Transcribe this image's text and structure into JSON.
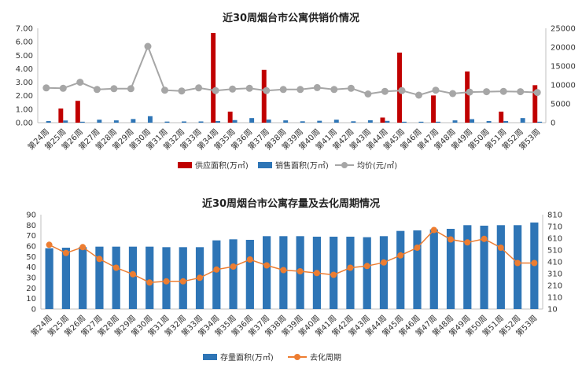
{
  "chart_data": [
    {
      "type": "bar",
      "title": "近30周烟台市公寓供销价情况",
      "categories": [
        "第24周",
        "第25周",
        "第26周",
        "第27周",
        "第28周",
        "第29周",
        "第30周",
        "第31周",
        "第32周",
        "第33周",
        "第34周",
        "第35周",
        "第36周",
        "第37周",
        "第38周",
        "第39周",
        "第40周",
        "第41周",
        "第42周",
        "第43周",
        "第44周",
        "第45周",
        "第46周",
        "第47周",
        "第48周",
        "第49周",
        "第50周",
        "第51周",
        "第52周",
        "第53周"
      ],
      "y_ticks": [
        "0.00",
        "1.00",
        "2.00",
        "3.00",
        "4.00",
        "5.00",
        "6.00",
        "7.00"
      ],
      "y2_ticks": [
        "0",
        "5000",
        "10000",
        "15000",
        "20000",
        "25000"
      ],
      "ylim": [
        0,
        7
      ],
      "y2lim": [
        0,
        25000
      ],
      "legend_position": "bottom",
      "series": [
        {
          "name": "供应面积(万㎡)",
          "kind": "bar",
          "axis": "left",
          "color": "#c00000",
          "values": [
            0,
            1.05,
            1.62,
            0,
            0,
            0,
            0,
            0,
            0,
            0,
            6.65,
            0.82,
            0,
            3.92,
            0,
            0,
            0,
            0,
            0,
            0,
            0.38,
            5.2,
            0,
            2.02,
            0,
            3.8,
            0,
            0.82,
            0,
            2.78
          ]
        },
        {
          "name": "销售面积(万㎡)",
          "kind": "bar",
          "axis": "left",
          "color": "#2e75b6",
          "values": [
            0.12,
            0.16,
            0.07,
            0.22,
            0.17,
            0.27,
            0.48,
            0.08,
            0.09,
            0.09,
            0.12,
            0.19,
            0.34,
            0.23,
            0.17,
            0.1,
            0.14,
            0.22,
            0.1,
            0.18,
            0.13,
            0.07,
            0.07,
            0.07,
            0.17,
            0.26,
            0.12,
            0.12,
            0.34,
            0.07
          ]
        },
        {
          "name": "均价(元/㎡)",
          "kind": "line",
          "axis": "right",
          "color": "#a6a6a6",
          "values": [
            9200,
            9100,
            10700,
            8800,
            9000,
            9000,
            20200,
            8600,
            8400,
            9200,
            8500,
            8900,
            9100,
            8500,
            8800,
            8800,
            9300,
            8800,
            9100,
            7600,
            8300,
            8500,
            7300,
            8600,
            7700,
            8100,
            8200,
            8300,
            8200,
            8000
          ]
        }
      ]
    },
    {
      "type": "bar",
      "title": "近30周烟台市公寓存量及去化周期情况",
      "categories": [
        "第24周",
        "第25周",
        "第26周",
        "第27周",
        "第28周",
        "第29周",
        "第30周",
        "第31周",
        "第32周",
        "第33周",
        "第34周",
        "第35周",
        "第36周",
        "第37周",
        "第38周",
        "第39周",
        "第40周",
        "第41周",
        "第42周",
        "第43周",
        "第44周",
        "第45周",
        "第46周",
        "第47周",
        "第48周",
        "第49周",
        "第50周",
        "第51周",
        "第52周",
        "第53周"
      ],
      "y_ticks": [
        "0",
        "10",
        "20",
        "30",
        "40",
        "50",
        "60",
        "70",
        "80",
        "90"
      ],
      "y2_ticks": [
        "10",
        "110",
        "210",
        "310",
        "410",
        "510",
        "610",
        "710",
        "810"
      ],
      "ylim": [
        0,
        90
      ],
      "y2lim": [
        10,
        810
      ],
      "legend_position": "bottom",
      "series": [
        {
          "name": "存量面积(万㎡)",
          "kind": "bar",
          "axis": "left",
          "color": "#2e75b6",
          "values": [
            58,
            58.5,
            59,
            59.5,
            59.5,
            59.5,
            59.5,
            59,
            59,
            59,
            65.5,
            66.5,
            66,
            69.5,
            69.5,
            69.5,
            69,
            69,
            69,
            68.5,
            69.5,
            74.5,
            75,
            76,
            76.5,
            80,
            79.5,
            80,
            80,
            82.5
          ]
        },
        {
          "name": "去化周期",
          "kind": "line",
          "axis": "right",
          "color": "#ed7d31",
          "values": [
            555,
            485,
            535,
            435,
            360,
            305,
            235,
            245,
            245,
            275,
            345,
            370,
            430,
            380,
            340,
            330,
            315,
            300,
            360,
            375,
            405,
            465,
            530,
            680,
            600,
            575,
            605,
            530,
            400,
            400
          ]
        }
      ]
    }
  ]
}
